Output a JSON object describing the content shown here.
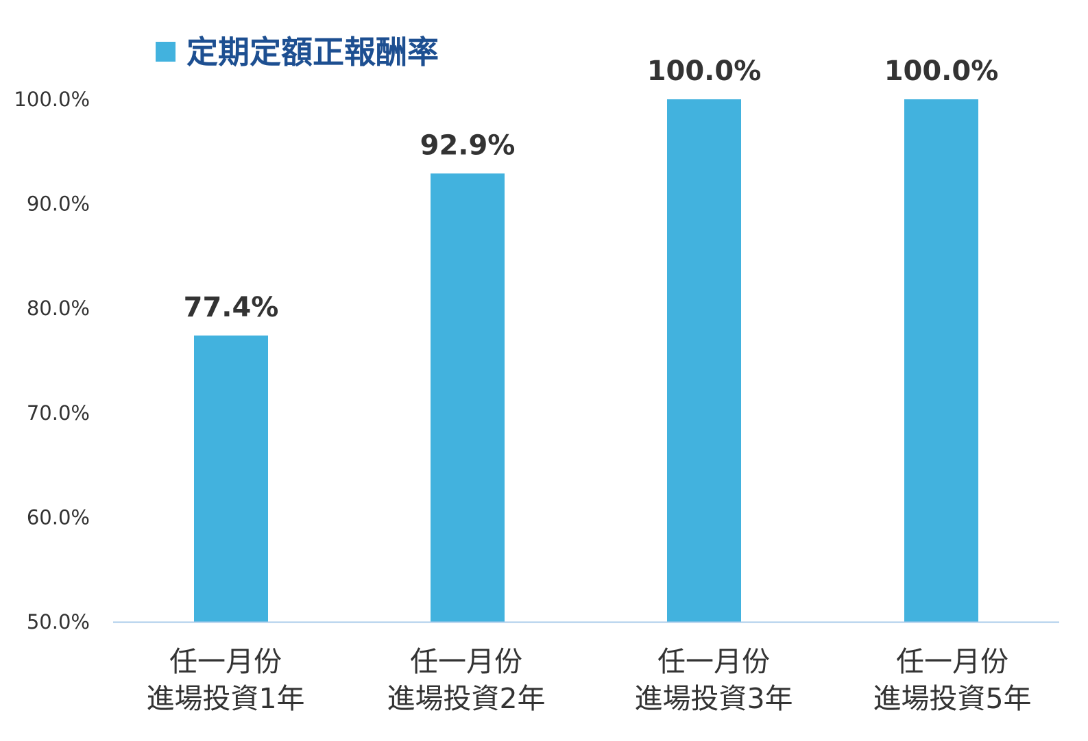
{
  "chart_data": {
    "type": "bar",
    "categories": [
      [
        "任一月份",
        "進場投資1年"
      ],
      [
        "任一月份",
        "進場投資2年"
      ],
      [
        "任一月份",
        "進場投資3年"
      ],
      [
        "任一月份",
        "進場投資5年"
      ]
    ],
    "series": [
      {
        "name": "定期定額正報酬率",
        "values": [
          77.4,
          92.9,
          100.0,
          100.0
        ],
        "value_labels": [
          "77.4%",
          "92.9%",
          "100.0%",
          "100.0%"
        ],
        "color": "#42b2de"
      }
    ],
    "ylim": [
      50,
      100
    ],
    "yticks": [
      50,
      60,
      70,
      80,
      90,
      100
    ],
    "ytick_labels": [
      "50.0%",
      "60.0%",
      "70.0%",
      "80.0%",
      "90.0%",
      "100.0%"
    ],
    "legend": {
      "position": "top-left",
      "label": "定期定額正報酬率",
      "text_color": "#1d4f91"
    },
    "grid": false,
    "axis_color": "#a9cbea"
  }
}
